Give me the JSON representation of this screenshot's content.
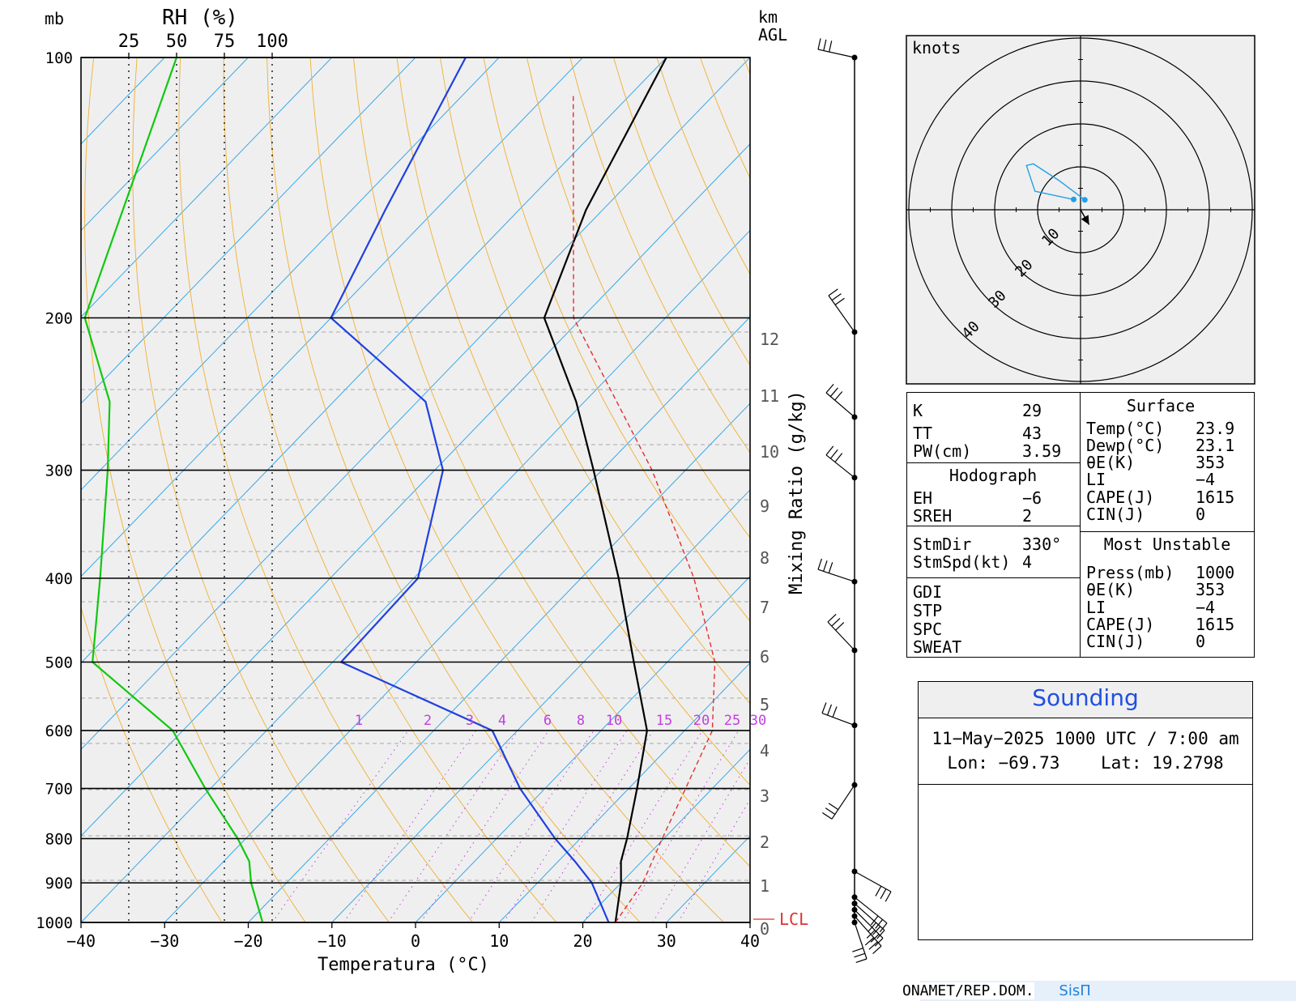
{
  "skewt": {
    "top_left_label": "mb",
    "rh_title": "RH (%)",
    "rh_ticks": [
      "25",
      "50",
      "75",
      "100"
    ],
    "km_label": [
      "km",
      "AGL"
    ],
    "pressure_labels": [
      "100",
      "200",
      "300",
      "400",
      "500",
      "600",
      "700",
      "800",
      "900",
      "1000"
    ],
    "temp_ticks": [
      "−40",
      "−30",
      "−20",
      "−10",
      "0",
      "10",
      "20",
      "30",
      "40"
    ],
    "xlabel": "Temperatura (°C)",
    "mixing_ratio_label": "Mixing Ratio (g/kg)",
    "mixing_ratio_values": [
      "1",
      "2",
      "3",
      "4",
      "6",
      "8",
      "10",
      "15",
      "20",
      "25",
      "30"
    ],
    "km_heights": [
      "12",
      "11",
      "10",
      "9",
      "8",
      "7",
      "6",
      "5",
      "4",
      "3",
      "2",
      "1",
      "0"
    ],
    "lcl_label": "LCL"
  },
  "chart_data": {
    "type": "line",
    "title": "",
    "xlabel": "Temperatura (°C)",
    "ylabel": "mb",
    "xlim": [
      -40,
      40
    ],
    "ylim": [
      1000,
      100
    ],
    "y_scale": "log-pressure (skew-T)",
    "series": [
      {
        "name": "",
        "role": "temperature",
        "color": "#000000",
        "points": [
          [
            1000,
            23.9
          ],
          [
            900,
            20.0
          ],
          [
            850,
            17.5
          ],
          [
            800,
            15.6
          ],
          [
            700,
            11.0
          ],
          [
            600,
            5.5
          ],
          [
            500,
            -4.0
          ],
          [
            400,
            -15.5
          ],
          [
            300,
            -31.0
          ],
          [
            250,
            -41.0
          ],
          [
            200,
            -54.5
          ],
          [
            150,
            -62.0
          ],
          [
            100,
            -70.0
          ]
        ]
      },
      {
        "name": "",
        "role": "dewpoint",
        "color": "#2040e0",
        "points": [
          [
            1000,
            23.1
          ],
          [
            900,
            16.5
          ],
          [
            850,
            12.0
          ],
          [
            800,
            7.0
          ],
          [
            700,
            -3.0
          ],
          [
            600,
            -13.0
          ],
          [
            500,
            -39.0
          ],
          [
            400,
            -39.5
          ],
          [
            300,
            -49.0
          ],
          [
            250,
            -59.0
          ],
          [
            200,
            -80.0
          ],
          [
            150,
            -86.0
          ],
          [
            100,
            -94.0
          ]
        ]
      },
      {
        "name": "",
        "role": "parcel",
        "color": "#e03030",
        "dashed": true,
        "points": [
          [
            1000,
            23.9
          ],
          [
            900,
            22.6
          ],
          [
            800,
            19.8
          ],
          [
            700,
            16.8
          ],
          [
            600,
            13.3
          ],
          [
            500,
            5.7
          ],
          [
            400,
            -6.5
          ],
          [
            300,
            -24.0
          ],
          [
            200,
            -51.0
          ],
          [
            110,
            -77.0
          ]
        ]
      },
      {
        "name": "",
        "role": "relative_humidity",
        "color": "#10c810",
        "unit": "%",
        "points": [
          [
            1000,
            95
          ],
          [
            900,
            89
          ],
          [
            850,
            88
          ],
          [
            800,
            82
          ],
          [
            700,
            65
          ],
          [
            600,
            48
          ],
          [
            500,
            6
          ],
          [
            400,
            10
          ],
          [
            300,
            14
          ],
          [
            250,
            15
          ],
          [
            200,
            2
          ],
          [
            100,
            50
          ]
        ]
      }
    ],
    "wind_barbs": {
      "unit": "knots",
      "heights_km": [
        14.1,
        12.0,
        10.5,
        9.4,
        7.4,
        6.0,
        4.4,
        3.1,
        1.2,
        0.6,
        0.45,
        0.3,
        0.15,
        0.0
      ]
    }
  },
  "hodograph": {
    "unit_label": "knots",
    "ring_labels": [
      "10",
      "20",
      "30",
      "40"
    ],
    "chart_data": {
      "type": "line",
      "rings_kt": [
        10,
        20,
        30,
        40
      ],
      "points_u_v": [
        [
          1,
          2.3
        ],
        [
          -5,
          6.8
        ],
        [
          -11,
          10.7
        ],
        [
          -12.6,
          10.3
        ],
        [
          -10.6,
          4.3
        ],
        [
          -1.6,
          2.4
        ]
      ],
      "storm_motion_arrow": {
        "dir_deg": 330,
        "speed_kt": 4
      }
    }
  },
  "indices": {
    "left": [
      {
        "label": "K",
        "value": "29"
      },
      {
        "label": "TT",
        "value": "43"
      },
      {
        "label": "PW(cm)",
        "value": "3.59"
      }
    ],
    "hodograph_title": "Hodograph",
    "hodograph_rows": [
      {
        "label": "EH",
        "value": "−6"
      },
      {
        "label": "SREH",
        "value": "2"
      }
    ],
    "storm_rows": [
      {
        "label": "StmDir",
        "value": "330°"
      },
      {
        "label": "StmSpd(kt)",
        "value": "4"
      }
    ],
    "other_rows": [
      "GDI",
      "STP",
      "SPC",
      "SWEAT"
    ],
    "surface_title": "Surface",
    "surface_rows": [
      {
        "label": "Temp(°C)",
        "value": "23.9"
      },
      {
        "label": "Dewp(°C)",
        "value": "23.1"
      },
      {
        "label": "θE(K)",
        "value": "353"
      },
      {
        "label": "LI",
        "value": "−4"
      },
      {
        "label": "CAPE(J)",
        "value": "1615"
      },
      {
        "label": "CIN(J)",
        "value": "0"
      }
    ],
    "unstable_title": "Most Unstable",
    "unstable_rows": [
      {
        "label": "Press(mb)",
        "value": "1000"
      },
      {
        "label": "θE(K)",
        "value": "353"
      },
      {
        "label": "LI",
        "value": "−4"
      },
      {
        "label": "CAPE(J)",
        "value": "1615"
      },
      {
        "label": "CIN(J)",
        "value": "0"
      }
    ]
  },
  "info": {
    "title": "Sounding",
    "datetime": "11−May−2025 1000 UTC / 7:00 am",
    "location": "Lon: −69.73    Lat: 19.2798"
  },
  "footer": {
    "org": "ONAMET/REP.DOM.",
    "brand": "SisΠ"
  },
  "colors": {
    "isotherm": "#3aa8e8",
    "dry_adiabat": "#f0b030",
    "mixing_ratio": "#c040e0",
    "temperature": "#000000",
    "dewpoint": "#2040e0",
    "parcel": "#e03030",
    "rh": "#10c810",
    "hodo_line": "#20a0e8",
    "station_marker": "#e03030"
  }
}
